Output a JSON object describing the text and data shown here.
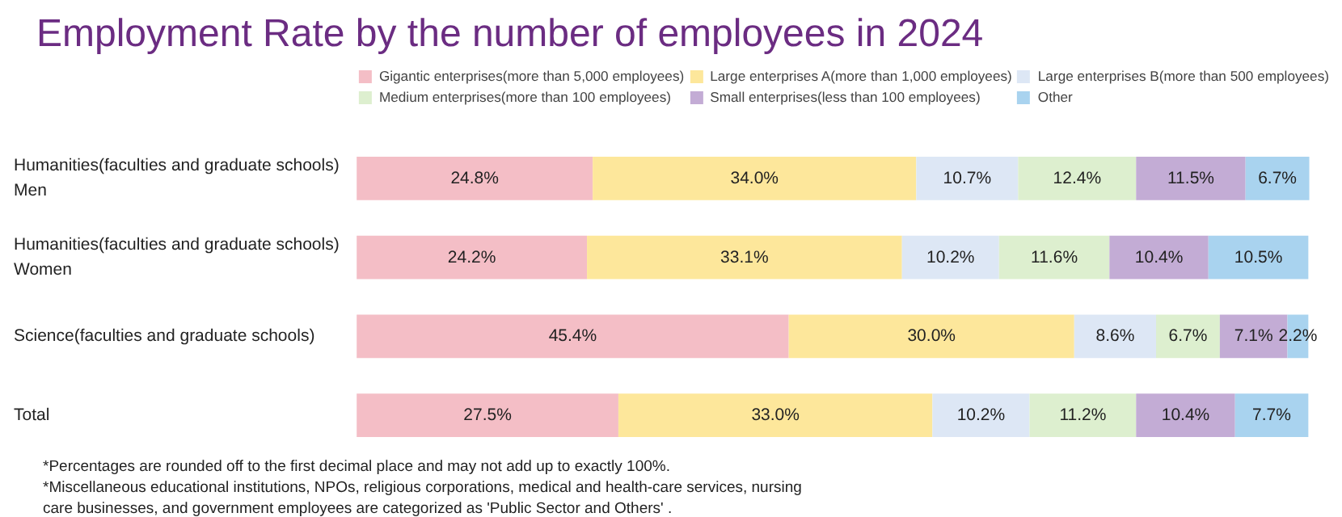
{
  "chart_data": {
    "type": "bar",
    "orientation": "horizontal",
    "stacked": true,
    "title": "Employment Rate by the number of employees in 2024",
    "categories": [
      "Humanities(faculties and graduate schools)\nMen",
      "Humanities(faculties and graduate schools)\nWomen",
      "Science(faculties and graduate schools)",
      "Total"
    ],
    "series": [
      {
        "name": "Gigantic enterprises(more than 5,000 employees)",
        "color": "#f4bec6",
        "values": [
          24.8,
          24.2,
          45.4,
          27.5
        ],
        "value_labels": [
          "24.8%",
          "24.2%",
          "45.4%",
          "27.5%"
        ]
      },
      {
        "name": "Large enterprises A(more than 1,000 employees)",
        "color": "#fde79b",
        "values": [
          34.0,
          33.1,
          30.0,
          33.0
        ],
        "value_labels": [
          "34.0%",
          "33.1%",
          "30.0%",
          "33.0%"
        ]
      },
      {
        "name": "Large enterprises B(more than 500 employees)",
        "color": "#dde7f5",
        "values": [
          10.7,
          10.2,
          8.6,
          10.2
        ],
        "value_labels": [
          "10.7%",
          "10.2%",
          "8.6%",
          "10.2%"
        ]
      },
      {
        "name": "Medium enterprises(more than 100 employees)",
        "color": "#ddefcf",
        "values": [
          12.4,
          11.6,
          6.7,
          11.2
        ],
        "value_labels": [
          "12.4%",
          "11.6%",
          "6.7%",
          "11.2%"
        ]
      },
      {
        "name": "Small enterprises(less than 100 employees)",
        "color": "#c3acd5",
        "values": [
          11.5,
          10.4,
          7.1,
          10.4
        ],
        "value_labels": [
          "11.5%",
          "10.4%",
          "7.1%",
          "10.4%"
        ]
      },
      {
        "name": "Other",
        "color": "#a9d3ef",
        "values": [
          6.7,
          10.5,
          2.2,
          7.7
        ],
        "value_labels": [
          "6.7%",
          "10.5%",
          "2.2%",
          "7.7%"
        ]
      }
    ],
    "legend": "top right",
    "annotations": [
      "*Percentages are rounded off to the first decimal place and may not add up to exactly 100%.",
      "*Miscellaneous educational institutions, NPOs, religious corporations, medical and health-care services, nursing care businesses, and government employees are categorized as 'Public Sector and Others' ."
    ]
  }
}
